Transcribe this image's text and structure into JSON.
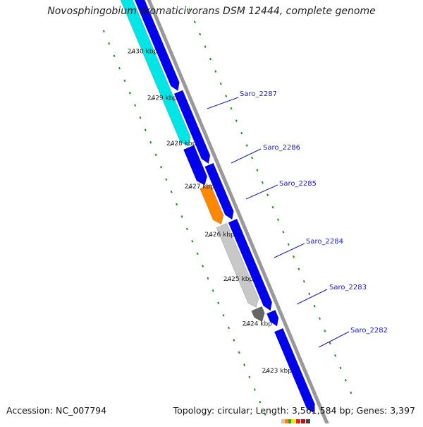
{
  "title": "Novosphingobium aromaticivorans DSM 12444, complete genome",
  "accession_text": "Accession: NC_007794",
  "summary_text": "Topology: circular; Length: 3,561,584 bp; Genes: 3,397",
  "colors": {
    "forward_cds": "#0000ee",
    "reverse_cds": "#0000ee",
    "highlight_cds": "#00e5e5",
    "orange_cds": "#ff8800",
    "gray_cds": "#c8c8c8",
    "dark_gray_cds": "#666666",
    "backbone": "#999999",
    "gc_dots": "#1e8c1e",
    "label_line": "#1a1acc"
  },
  "ticks": [
    "2430 kbp",
    "2429 kbp",
    "2428 kbp",
    "2427 kbp",
    "2426 kbp",
    "2425 kbp",
    "2424 kbp",
    "2423 kbp"
  ],
  "genes": [
    "Saro_2287",
    "Saro_2286",
    "Saro_2285",
    "Saro_2284",
    "Saro_2283",
    "Saro_2282"
  ]
}
